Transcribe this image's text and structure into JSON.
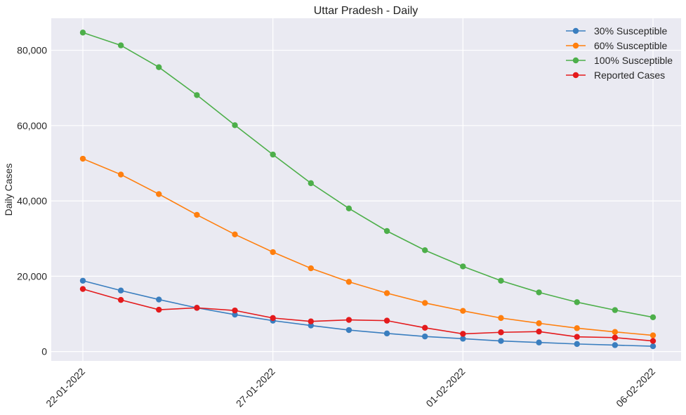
{
  "chart_data": {
    "type": "line",
    "title": "Uttar Pradesh - Daily",
    "xlabel": "",
    "ylabel": "Daily Cases",
    "x": [
      "22-01-2022",
      "23-01-2022",
      "24-01-2022",
      "25-01-2022",
      "26-01-2022",
      "27-01-2022",
      "28-01-2022",
      "29-01-2022",
      "30-01-2022",
      "31-01-2022",
      "01-02-2022",
      "02-02-2022",
      "03-02-2022",
      "04-02-2022",
      "05-02-2022",
      "06-02-2022"
    ],
    "x_tick_labels": [
      "22-01-2022",
      "27-01-2022",
      "01-02-2022",
      "06-02-2022"
    ],
    "y_tick_labels": [
      "0",
      "20,000",
      "40,000",
      "60,000",
      "80,000"
    ],
    "y_ticks": [
      0,
      20000,
      40000,
      60000,
      80000
    ],
    "ylim": [
      -2500,
      88500
    ],
    "grid": true,
    "legend_position": "top-right",
    "series": [
      {
        "name": "30% Susceptible",
        "color": "#3a7ebf",
        "values": [
          18800,
          16200,
          13800,
          11600,
          9800,
          8200,
          6900,
          5700,
          4800,
          4000,
          3400,
          2800,
          2400,
          2000,
          1700,
          1400
        ]
      },
      {
        "name": "60% Susceptible",
        "color": "#ff7f0e",
        "values": [
          51200,
          47000,
          41800,
          36300,
          31100,
          26400,
          22100,
          18500,
          15500,
          12900,
          10800,
          8900,
          7500,
          6200,
          5200,
          4300
        ]
      },
      {
        "name": "100% Susceptible",
        "color": "#4daf4a",
        "values": [
          84700,
          81300,
          75500,
          68100,
          60100,
          52300,
          44700,
          38000,
          32000,
          26900,
          22600,
          18800,
          15700,
          13100,
          11000,
          9100
        ]
      },
      {
        "name": "Reported Cases",
        "color": "#e41a1c",
        "values": [
          16600,
          13700,
          11100,
          11600,
          10900,
          8900,
          8000,
          8400,
          8200,
          6300,
          4700,
          5100,
          5300,
          3900,
          3700,
          2800
        ]
      }
    ]
  }
}
